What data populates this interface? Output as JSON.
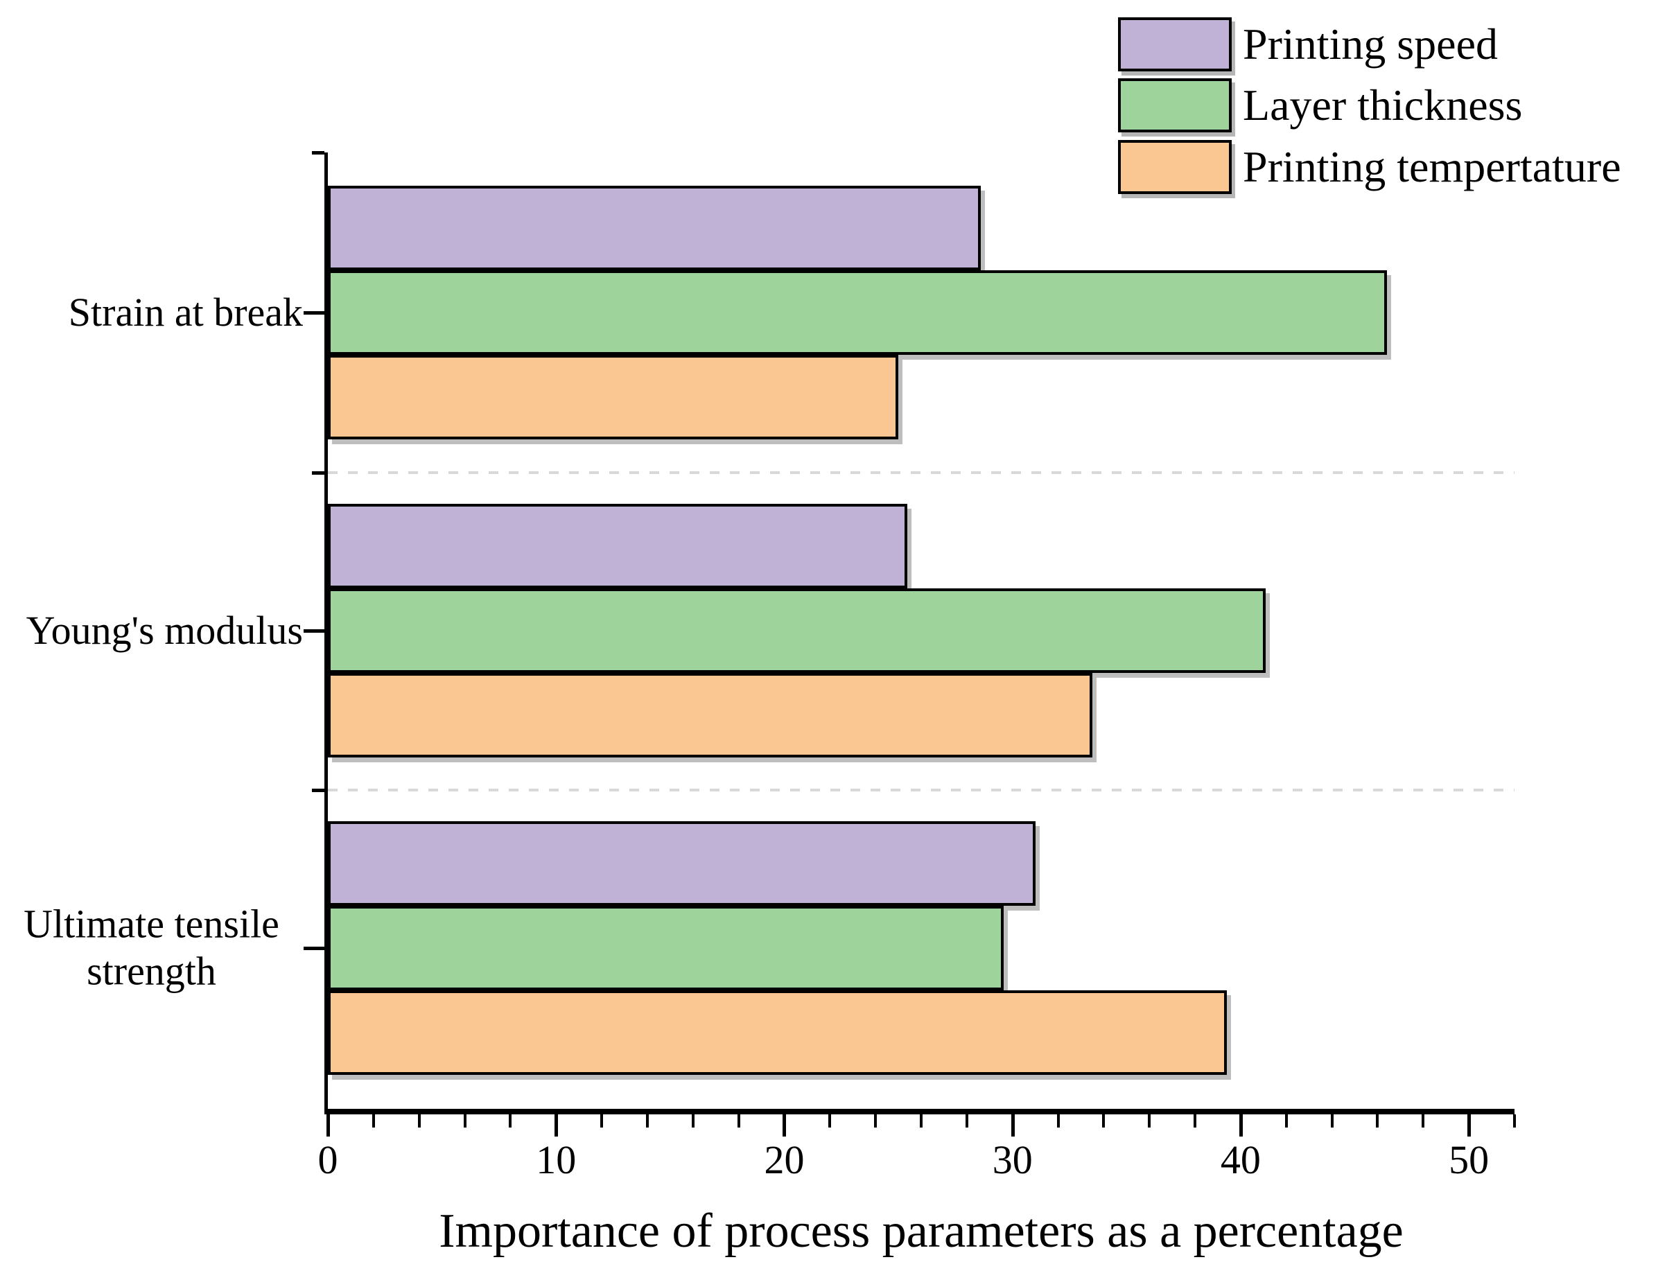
{
  "chart_data": {
    "type": "bar",
    "orientation": "horizontal",
    "xlabel": "Importance of process parameters as a percentage",
    "categories": [
      "Strain at break",
      "Young's modulus",
      "Ultimate tensile strength"
    ],
    "series": [
      {
        "name": "Printing speed",
        "color": "#c0b1d6",
        "values": [
          28.6,
          25.4,
          31.0
        ]
      },
      {
        "name": "Layer thickness",
        "color": "#9ed49c",
        "values": [
          46.4,
          41.1,
          29.6
        ]
      },
      {
        "name": "Printing tempertature",
        "color": "#fac692",
        "values": [
          25.0,
          33.5,
          39.4
        ]
      }
    ],
    "xlim": [
      0,
      52
    ],
    "x_major_ticks": [
      0,
      10,
      20,
      30,
      40,
      50
    ],
    "x_minor_tick_step": 2,
    "legend_position": "top-right",
    "bar_outline_color": "#000000",
    "separator_style": "dashed light-gray lines between category groups",
    "grid": "off"
  }
}
